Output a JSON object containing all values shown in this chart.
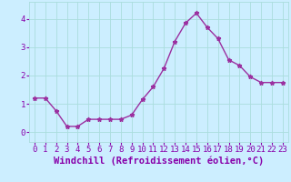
{
  "x": [
    0,
    1,
    2,
    3,
    4,
    5,
    6,
    7,
    8,
    9,
    10,
    11,
    12,
    13,
    14,
    15,
    16,
    17,
    18,
    19,
    20,
    21,
    22,
    23
  ],
  "y": [
    1.2,
    1.2,
    0.75,
    0.2,
    0.2,
    0.45,
    0.45,
    0.45,
    0.45,
    0.6,
    1.15,
    1.6,
    2.25,
    3.2,
    3.85,
    4.2,
    3.7,
    3.3,
    2.55,
    2.35,
    1.95,
    1.75,
    1.75,
    1.75
  ],
  "line_color": "#9b30a0",
  "marker": "*",
  "marker_size": 3.5,
  "background_color": "#cceeff",
  "grid_color": "#aadddd",
  "xlabel": "Windchill (Refroidissement éolien,°C)",
  "xlabel_fontsize": 7.5,
  "xlim": [
    -0.5,
    23.5
  ],
  "ylim": [
    -0.35,
    4.6
  ],
  "yticks": [
    0,
    1,
    2,
    3,
    4
  ],
  "xticks": [
    0,
    1,
    2,
    3,
    4,
    5,
    6,
    7,
    8,
    9,
    10,
    11,
    12,
    13,
    14,
    15,
    16,
    17,
    18,
    19,
    20,
    21,
    22,
    23
  ],
  "tick_fontsize": 6.5,
  "line_width": 1.0,
  "label_color": "#8800aa"
}
